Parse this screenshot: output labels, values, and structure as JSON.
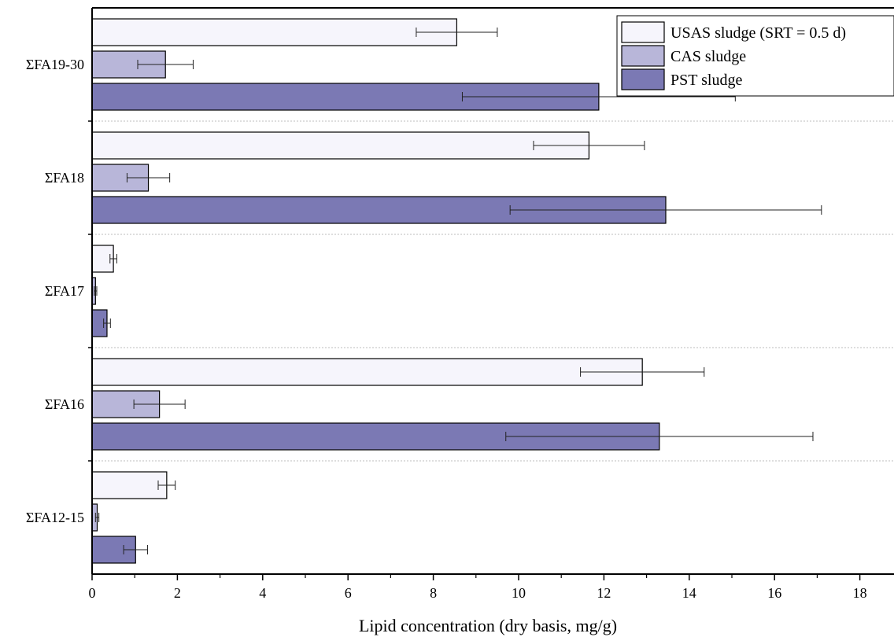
{
  "chart_data": {
    "type": "bar",
    "orientation": "horizontal",
    "title": "",
    "xlabel": "Lipid concentration (dry basis, mg/g)",
    "ylabel": "",
    "xlim": [
      0,
      19
    ],
    "xticks": [
      0,
      2,
      4,
      6,
      8,
      10,
      12,
      14,
      16,
      18
    ],
    "categories": [
      "ΣFA19-30",
      "ΣFA18",
      "ΣFA17",
      "ΣFA16",
      "ΣFA12-15"
    ],
    "series": [
      {
        "name": "USAS sludge (SRT = 0.5 d)",
        "color": "#f6f5fc",
        "values": [
          8.55,
          11.65,
          0.5,
          12.9,
          1.75
        ],
        "errors": [
          0.95,
          1.3,
          0.08,
          1.45,
          0.2
        ]
      },
      {
        "name": "CAS sludge",
        "color": "#b8b6d9",
        "values": [
          1.72,
          1.32,
          0.08,
          1.58,
          0.12
        ],
        "errors": [
          0.65,
          0.5,
          0.03,
          0.6,
          0.04
        ]
      },
      {
        "name": "PST sludge",
        "color": "#7b79b4",
        "values": [
          11.88,
          13.45,
          0.35,
          13.3,
          1.02
        ],
        "errors": [
          3.2,
          3.65,
          0.08,
          3.6,
          0.28
        ]
      }
    ],
    "grid": "dashed horizontal separators between categories",
    "legend_position": "top-right"
  }
}
